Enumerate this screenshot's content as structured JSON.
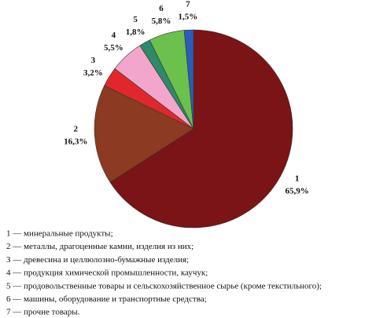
{
  "chart_data": {
    "type": "pie",
    "categories": [
      "1",
      "2",
      "3",
      "4",
      "5",
      "6",
      "7"
    ],
    "values": [
      65.9,
      16.3,
      3.2,
      5.5,
      1.8,
      5.8,
      1.5
    ],
    "value_labels": [
      "65,9%",
      "16,3%",
      "3,2%",
      "5,5%",
      "1,8%",
      "5,8%",
      "1,5%"
    ],
    "colors": [
      "#7a1416",
      "#8c3a22",
      "#e0282c",
      "#f2a6cc",
      "#2e8a68",
      "#6cc04c",
      "#2c5cb8"
    ],
    "legend_items": [
      "1 — минеральные продукты;",
      "2 — металлы, драгоценные камни, изделия из них;",
      "3 — древесина и целлюлозно-бумажные изделия;",
      "4 — продукция химической промышленности, каучук;",
      "5 — продовольственные товары и сельскохозяйственное сырье (кроме текстильного);",
      "6 — машины, оборудование и транспортные средства;",
      "7 — прочие товары."
    ]
  }
}
